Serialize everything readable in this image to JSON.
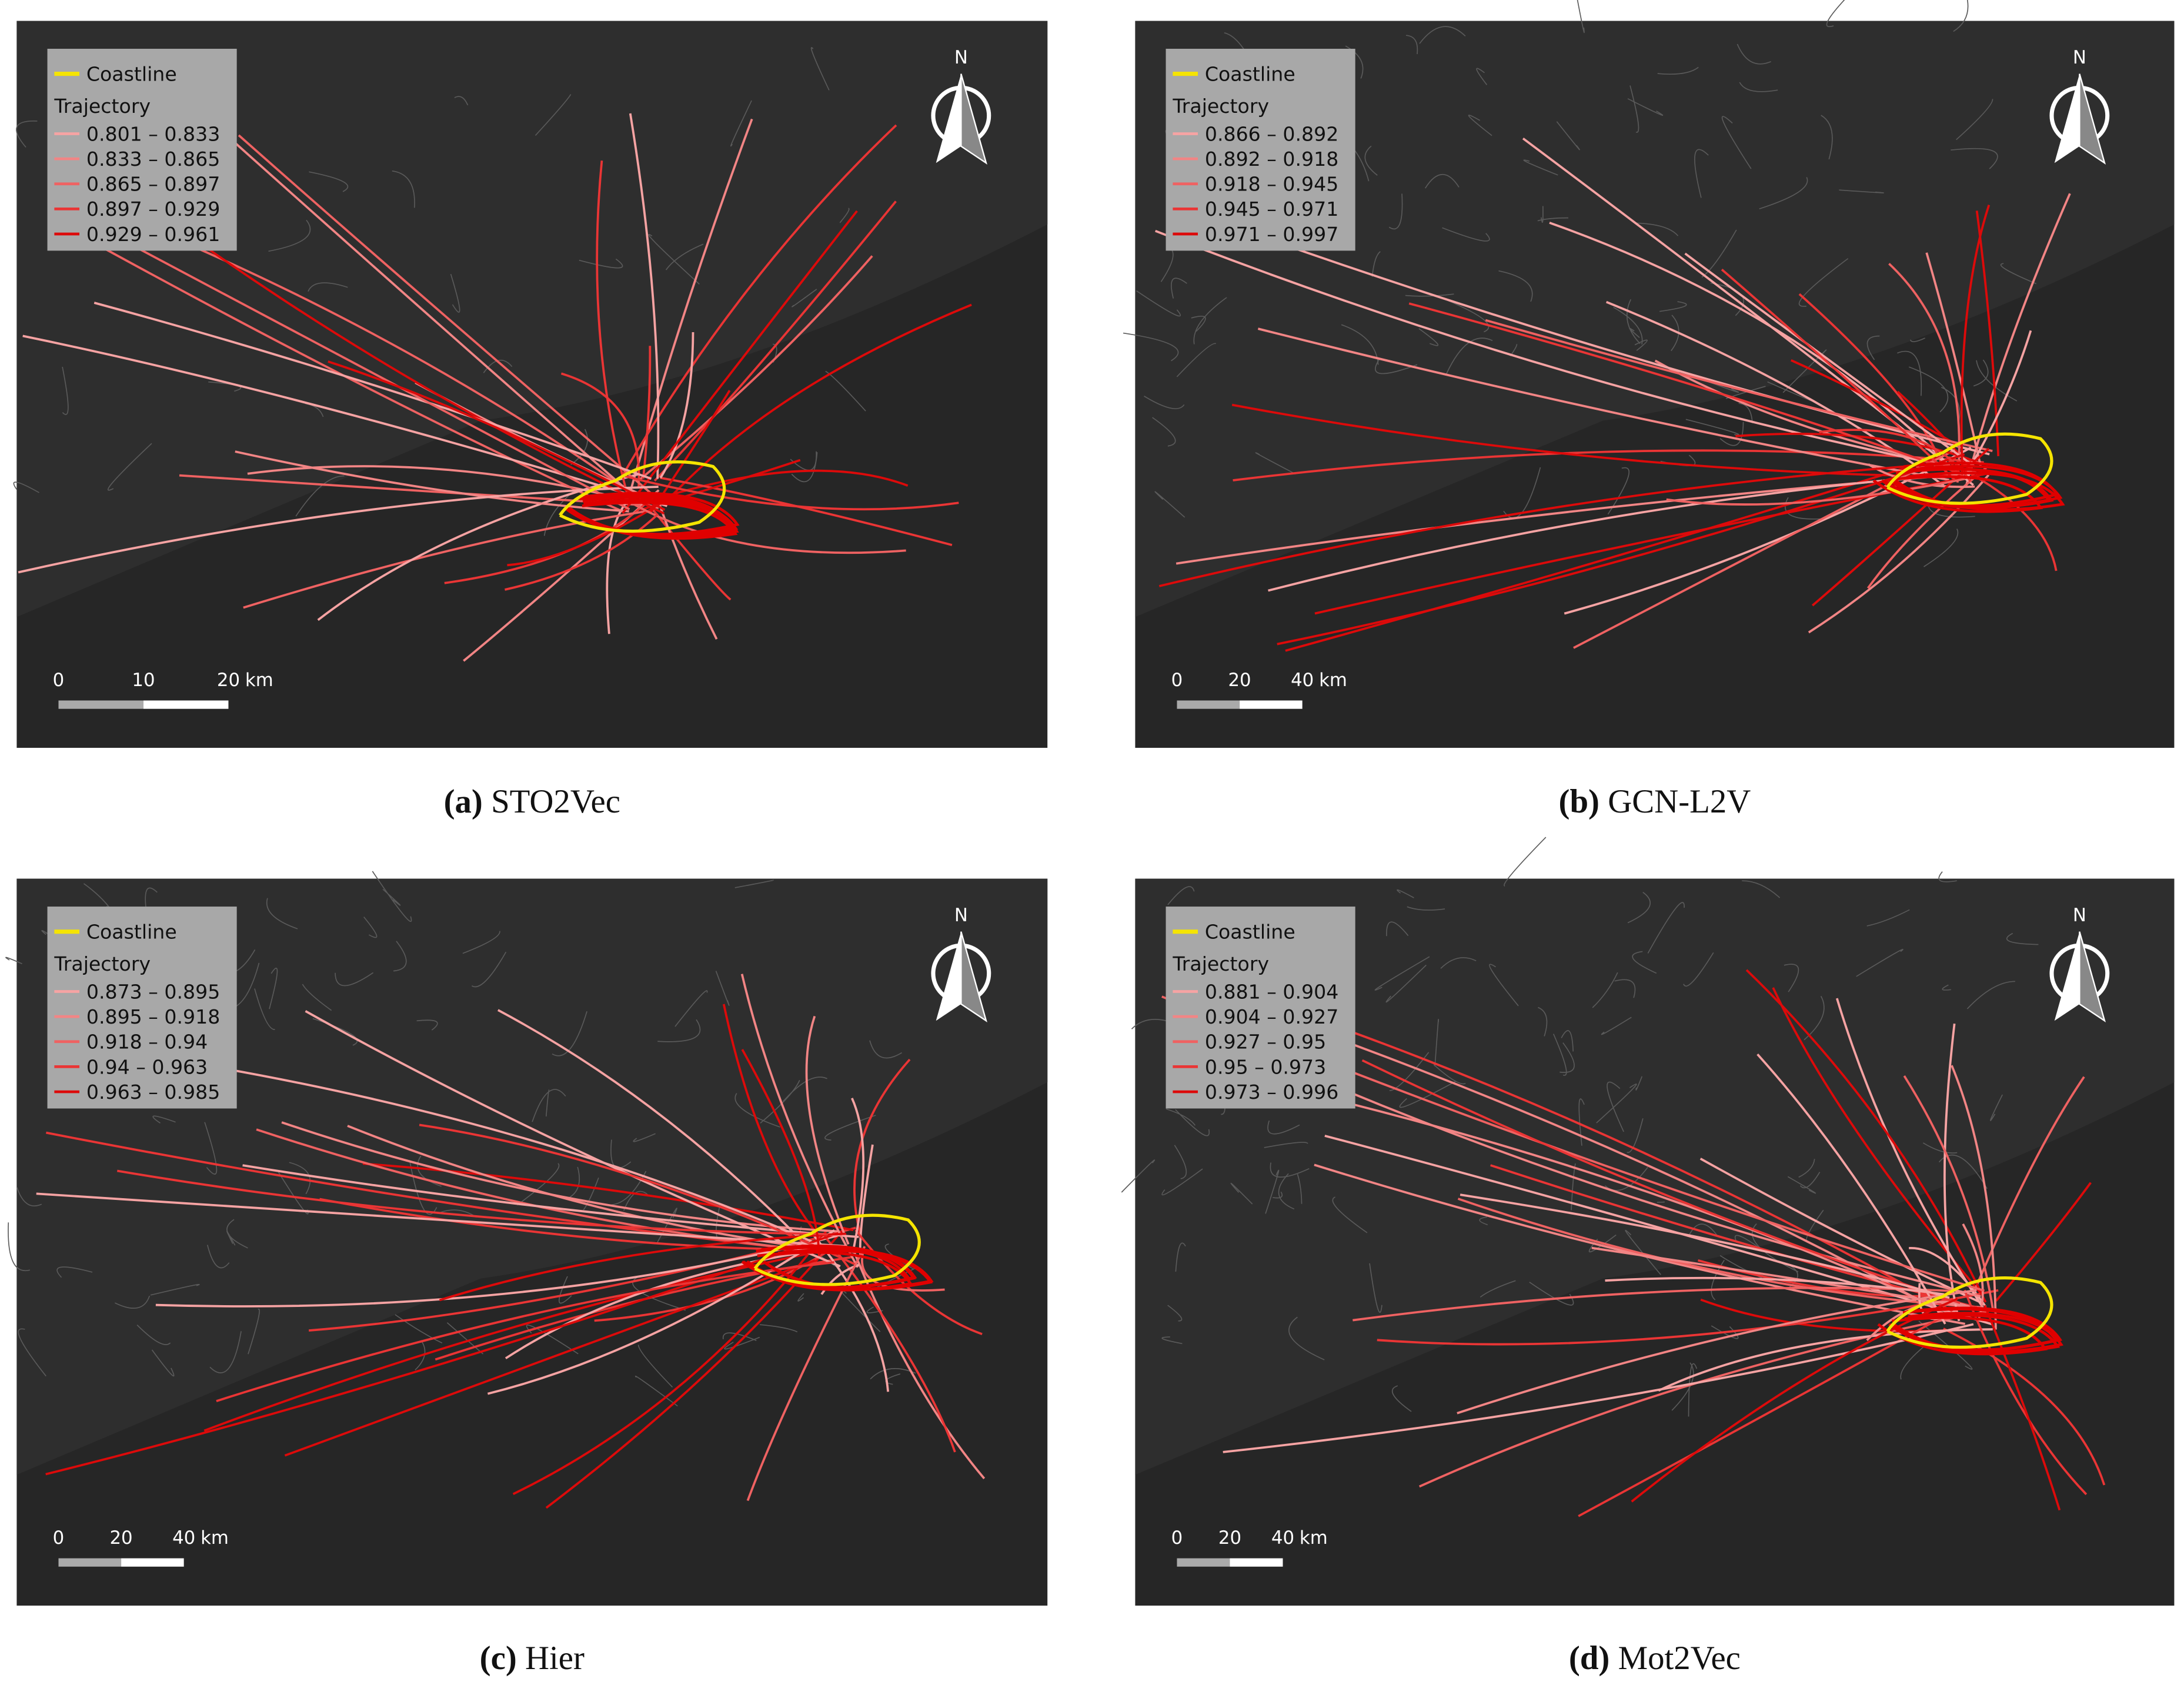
{
  "panels": [
    {
      "caption_label": "(a)",
      "caption_text": "STO2Vec",
      "legend_coastline": "Coastline",
      "legend_trajectory": "Trajectory",
      "legend_ranges": [
        "0.801 – 0.833",
        "0.833 – 0.865",
        "0.865 – 0.897",
        "0.897 – 0.929",
        "0.929 – 0.961"
      ],
      "scale_labels": [
        "0",
        "10",
        "20"
      ],
      "scale_unit": "km",
      "north": "N"
    },
    {
      "caption_label": "(b)",
      "caption_text": "GCN-L2V",
      "legend_coastline": "Coastline",
      "legend_trajectory": "Trajectory",
      "legend_ranges": [
        "0.866 – 0.892",
        "0.892 – 0.918",
        "0.918 – 0.945",
        "0.945 – 0.971",
        "0.971 – 0.997"
      ],
      "scale_labels": [
        "0",
        "20",
        "40"
      ],
      "scale_unit": "km",
      "north": "N"
    },
    {
      "caption_label": "(c)",
      "caption_text": "Hier",
      "legend_coastline": "Coastline",
      "legend_trajectory": "Trajectory",
      "legend_ranges": [
        "0.873 – 0.895",
        "0.895 – 0.918",
        "0.918 – 0.94",
        "0.94 – 0.963",
        "0.963 – 0.985"
      ],
      "scale_labels": [
        "0",
        "20",
        "40"
      ],
      "scale_unit": "km",
      "north": "N"
    },
    {
      "caption_label": "(d)",
      "caption_text": "Mot2Vec",
      "legend_coastline": "Coastline",
      "legend_trajectory": "Trajectory",
      "legend_ranges": [
        "0.881 – 0.904",
        "0.904 – 0.927",
        "0.927 – 0.95",
        "0.95 – 0.973",
        "0.973 – 0.996"
      ],
      "scale_labels": [
        "0",
        "20",
        "40"
      ],
      "scale_unit": "km",
      "north": "N"
    }
  ]
}
